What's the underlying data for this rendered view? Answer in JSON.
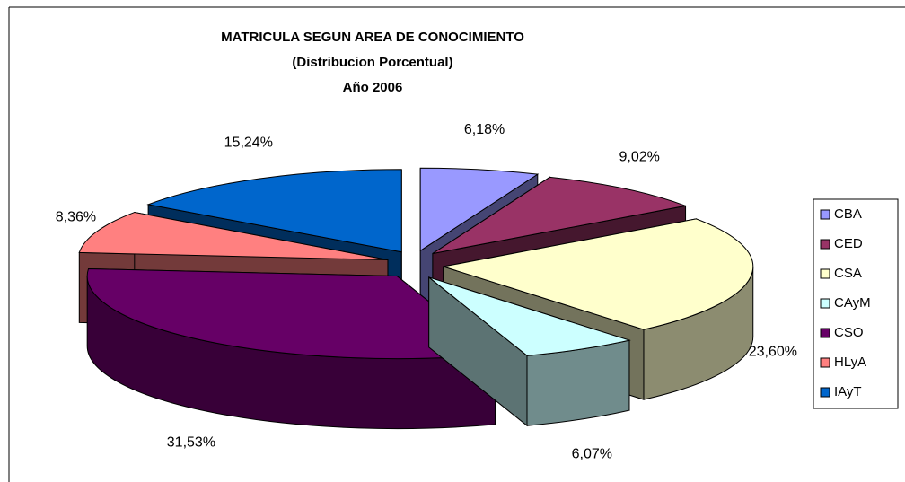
{
  "chart_data": {
    "type": "pie",
    "title": [
      "MATRICULA SEGUN AREA DE CONOCIMIENTO",
      "(Distribucion Porcentual)",
      "Año 2006"
    ],
    "categories": [
      "CBA",
      "CED",
      "CSA",
      "CAyM",
      "CSO",
      "HLyA",
      "IAyT"
    ],
    "values": [
      6.18,
      9.02,
      23.6,
      6.07,
      31.53,
      8.36,
      15.24
    ],
    "value_labels": [
      "6,18%",
      "9,02%",
      "23,60%",
      "6,07%",
      "31,53%",
      "8,36%",
      "15,24%"
    ],
    "colors": [
      "#9999ff",
      "#993366",
      "#ffffcc",
      "#ccffff",
      "#660066",
      "#ff8080",
      "#0066cc"
    ],
    "legend": "right"
  }
}
